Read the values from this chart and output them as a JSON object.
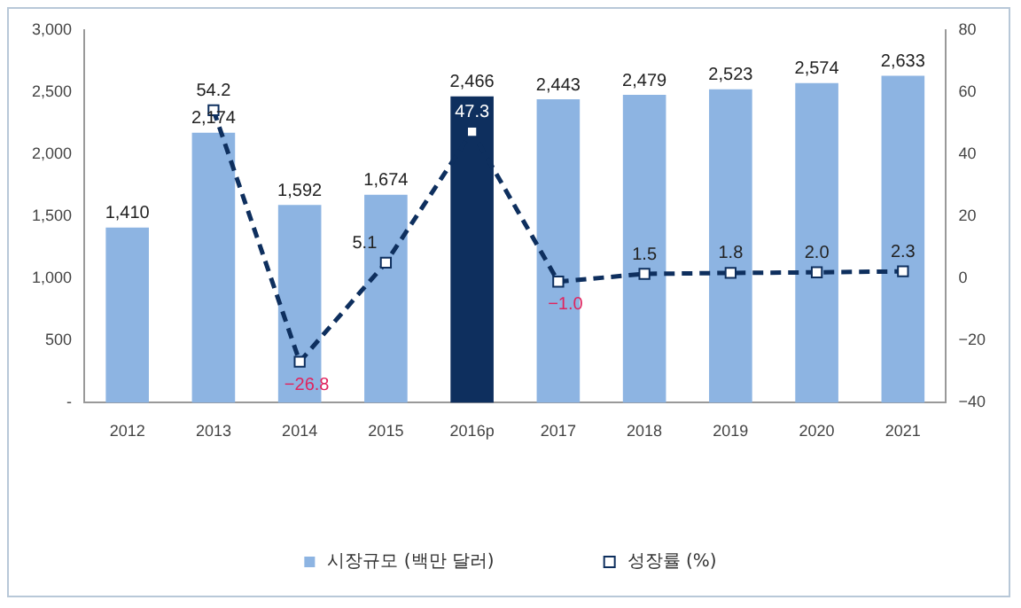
{
  "chart_data": {
    "type": "bar",
    "categories": [
      "2012",
      "2013",
      "2014",
      "2015",
      "2016p",
      "2017",
      "2018",
      "2019",
      "2020",
      "2021"
    ],
    "series": [
      {
        "name": "시장규모 (백만 달러)",
        "color": "#8db4e2",
        "colors": [
          "#8db4e2",
          "#8db4e2",
          "#8db4e2",
          "#8db4e2",
          "#0e2f5e",
          "#8db4e2",
          "#8db4e2",
          "#8db4e2",
          "#8db4e2",
          "#8db4e2"
        ],
        "values": [
          1410,
          2174,
          1592,
          1674,
          2466,
          2443,
          2479,
          2523,
          2574,
          2633
        ],
        "value_labels": [
          "1,410",
          "2,174",
          "1,592",
          "1,674",
          "2,466",
          "2,443",
          "2,479",
          "2,523",
          "2,574",
          "2,633"
        ]
      },
      {
        "name": "성장률 (%)",
        "type": "line",
        "axis": "y2",
        "color": "#0e2f5e",
        "marker": "square",
        "line_style": "dashed",
        "values": [
          null,
          54.2,
          -26.8,
          5.1,
          47.3,
          -1.0,
          1.5,
          1.8,
          2.0,
          2.3
        ],
        "value_labels": [
          null,
          "54.2",
          "−26.8",
          "5.1",
          "47.3",
          "−1.0",
          "1.5",
          "1.8",
          "2.0",
          "2.3"
        ]
      }
    ],
    "ylim": [
      0,
      3000
    ],
    "yticks": [
      {
        "value": 0,
        "label": "-"
      },
      {
        "value": 500,
        "label": "500"
      },
      {
        "value": 1000,
        "label": "1,000"
      },
      {
        "value": 1500,
        "label": "1,500"
      },
      {
        "value": 2000,
        "label": "2,000"
      },
      {
        "value": 2500,
        "label": "2,500"
      },
      {
        "value": 3000,
        "label": "3,000"
      }
    ],
    "y2lim": [
      -40,
      80
    ],
    "y2ticks": [
      {
        "value": -40,
        "label": "−40"
      },
      {
        "value": -20,
        "label": "−20"
      },
      0,
      20,
      40,
      60,
      80
    ],
    "legend": "bottom"
  }
}
